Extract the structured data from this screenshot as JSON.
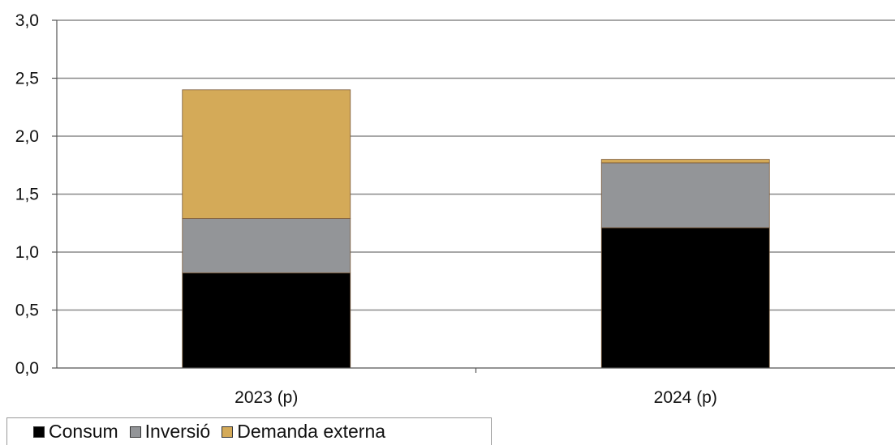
{
  "chart_data": {
    "type": "bar",
    "stacked": true,
    "categories": [
      "2023 (p)",
      "2024 (p)"
    ],
    "series": [
      {
        "name": "Consum",
        "values": [
          0.82,
          1.21
        ],
        "color": "#000000"
      },
      {
        "name": "Inversió",
        "values": [
          0.47,
          0.56
        ],
        "color": "#939598"
      },
      {
        "name": "Demanda externa",
        "values": [
          1.11,
          0.03
        ],
        "color": "#D4AA58"
      }
    ],
    "ylim": [
      0,
      3
    ],
    "yticks": [
      "0,0",
      "0,5",
      "1,0",
      "1,5",
      "2,0",
      "2,5",
      "3,0"
    ],
    "grid": true,
    "legend": "bottom-left"
  }
}
